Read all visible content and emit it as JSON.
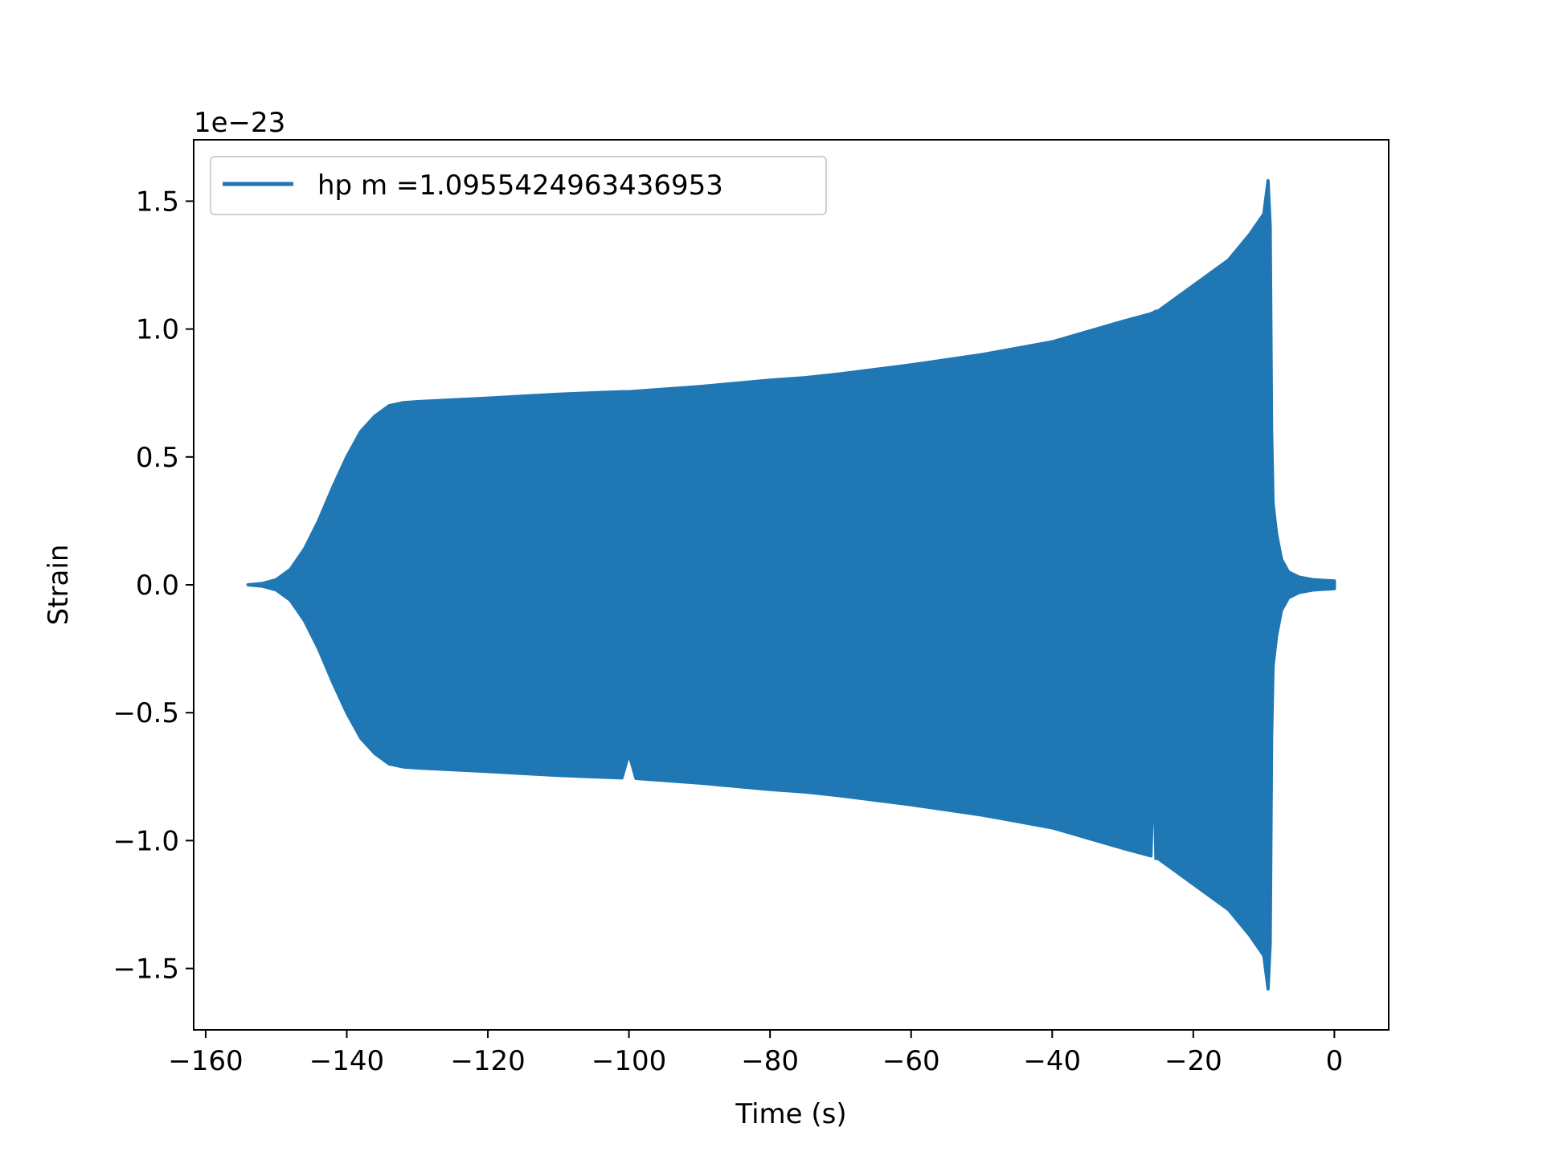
{
  "chart_data": {
    "type": "line",
    "title": "",
    "xlabel": "Time (s)",
    "ylabel": "Strain",
    "y_offset_text": "1e−23",
    "xlim": [
      -161.7,
      7.7
    ],
    "ylim": [
      -1.74,
      1.74
    ],
    "xticks": [
      -160,
      -140,
      -120,
      -100,
      -80,
      -60,
      -40,
      -20,
      0
    ],
    "xtick_labels": [
      "−160",
      "−140",
      "−120",
      "−100",
      "−80",
      "−60",
      "−40",
      "−20",
      "0"
    ],
    "yticks": [
      -1.5,
      -1.0,
      -0.5,
      0.0,
      0.5,
      1.0,
      1.5
    ],
    "ytick_labels": [
      "−1.5",
      "−1.0",
      "−0.5",
      "0.0",
      "0.5",
      "1.0",
      "1.5"
    ],
    "grid": false,
    "legend_placement": "upper-left",
    "series": [
      {
        "name": "hp m =1.0955424963436953",
        "color": "#1f77b4",
        "envelope": {
          "t": [
            -154,
            -152,
            -150,
            -148,
            -146,
            -144,
            -142,
            -140,
            -138,
            -136,
            -134,
            -132,
            -130,
            -120,
            -110,
            -101,
            -100,
            -99,
            -90,
            -80,
            -75,
            -70,
            -60,
            -50,
            -40,
            -30,
            -26,
            -25.6,
            -25.3,
            -25,
            -20,
            -15,
            -12,
            -10,
            -9.4,
            -9.1,
            -8.9,
            -8.7,
            -8.2,
            -7.5,
            -6.5,
            -5,
            -3,
            0
          ],
          "upper": [
            0.0,
            0.005,
            0.02,
            0.06,
            0.14,
            0.25,
            0.38,
            0.5,
            0.6,
            0.66,
            0.7,
            0.712,
            0.716,
            0.73,
            0.745,
            0.755,
            0.755,
            0.757,
            0.775,
            0.8,
            0.81,
            0.825,
            0.86,
            0.9,
            0.95,
            1.03,
            1.06,
            1.065,
            1.07,
            1.07,
            1.17,
            1.27,
            1.37,
            1.45,
            1.58,
            1.4,
            0.6,
            0.32,
            0.2,
            0.1,
            0.05,
            0.03,
            0.02,
            0.015
          ],
          "lower": [
            0.0,
            -0.005,
            -0.02,
            -0.06,
            -0.14,
            -0.25,
            -0.38,
            -0.5,
            -0.6,
            -0.66,
            -0.7,
            -0.712,
            -0.716,
            -0.73,
            -0.745,
            -0.755,
            -0.66,
            -0.757,
            -0.775,
            -0.8,
            -0.81,
            -0.825,
            -0.86,
            -0.9,
            -0.95,
            -1.03,
            -1.06,
            -0.67,
            -1.07,
            -1.07,
            -1.17,
            -1.27,
            -1.37,
            -1.45,
            -1.58,
            -1.4,
            -0.6,
            -0.32,
            -0.2,
            -0.1,
            -0.05,
            -0.03,
            -0.02,
            -0.015
          ]
        }
      }
    ]
  }
}
